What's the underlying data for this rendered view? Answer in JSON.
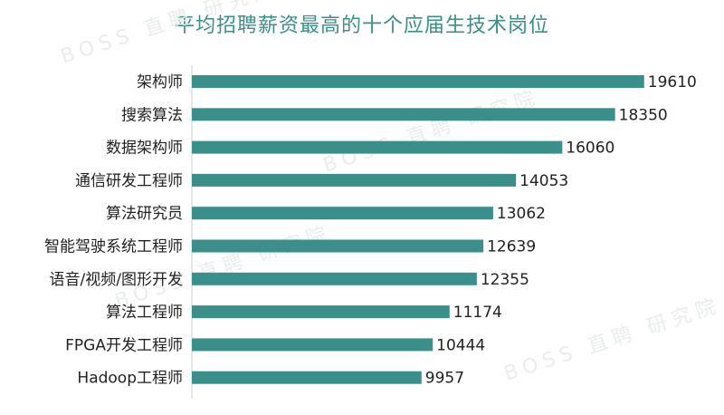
{
  "chart_data": {
    "type": "bar",
    "orientation": "horizontal",
    "title": "平均招聘薪资最高的十个应届生技术岗位",
    "categories": [
      "架构师",
      "搜索算法",
      "数据架构师",
      "通信研发工程师",
      "算法研究员",
      "智能驾驶系统工程师",
      "语音/视频/图形开发",
      "算法工程师",
      "FPGA开发工程师",
      "Hadoop工程师"
    ],
    "values": [
      19610,
      18350,
      16060,
      14053,
      13062,
      12639,
      12355,
      11174,
      10444,
      9957
    ],
    "xlim": [
      0,
      20600
    ],
    "grid": false,
    "bar_color": "#3a8f8a",
    "axis_color": "#cfcfcf"
  },
  "watermark": "BOSS 直聘 研究院"
}
